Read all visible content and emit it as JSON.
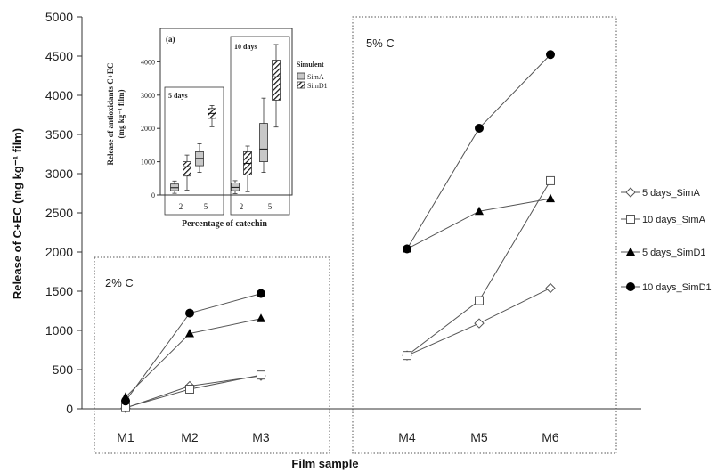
{
  "chart_data": [
    {
      "type": "line",
      "xlabel": "Film sample",
      "ylabel": "Release of C+EC (mg kg⁻¹ film)",
      "ylim": [
        0,
        5000
      ],
      "yticks": [
        0,
        500,
        1000,
        1500,
        2000,
        2500,
        3000,
        3500,
        4000,
        4500,
        5000
      ],
      "ytick_labels": [
        "0",
        "500",
        "1000",
        "1500",
        "2000",
        "2500",
        "3000",
        "3500",
        "4000",
        "4500",
        "5000"
      ],
      "categories": [
        "M1",
        "M2",
        "M3",
        "M4",
        "M5",
        "M6"
      ],
      "groups": [
        {
          "label": "2% C",
          "categories": [
            "M1",
            "M2",
            "M3"
          ]
        },
        {
          "label": "5% C",
          "categories": [
            "M4",
            "M5",
            "M6"
          ]
        }
      ],
      "legend_position": "right",
      "series": [
        {
          "name": "5 days_SimA",
          "marker": "diamond-open",
          "color": "#555555",
          "values": [
            10,
            290,
            420,
            680,
            1090,
            1540
          ]
        },
        {
          "name": "10 days_SimA",
          "marker": "square-open",
          "color": "#555555",
          "values": [
            15,
            250,
            430,
            680,
            1380,
            2910
          ]
        },
        {
          "name": "5 days_SimD1",
          "marker": "triangle-filled",
          "color": "#000000",
          "values": [
            150,
            960,
            1150,
            2040,
            2520,
            2680
          ]
        },
        {
          "name": "10 days_SimD1",
          "marker": "circle-filled",
          "color": "#000000",
          "values": [
            100,
            1220,
            1470,
            2040,
            3580,
            4520
          ]
        }
      ]
    },
    {
      "type": "box",
      "panel_label": "(a)",
      "ylabel_line1": "Release of antioxidants C+EC",
      "ylabel_line2": "(mg kg⁻¹ film)",
      "xlabel": "Percentage of catechin",
      "ylim": [
        0,
        5000
      ],
      "yticks": [
        0,
        1000,
        2000,
        3000,
        4000
      ],
      "ytick_labels": [
        "0",
        "1000",
        "2000",
        "3000",
        "4000"
      ],
      "legend_title": "Simulent",
      "legend": [
        {
          "name": "SimA",
          "fill": "solid-gray"
        },
        {
          "name": "SimD1",
          "fill": "hatched"
        }
      ],
      "panels": [
        {
          "label": "5 days",
          "categories": [
            "2",
            "5"
          ],
          "boxes": [
            {
              "category": "2",
              "simulant": "SimA",
              "min": 50,
              "q1": 130,
              "median": 220,
              "q3": 330,
              "max": 420
            },
            {
              "category": "2",
              "simulant": "SimD1",
              "min": 150,
              "q1": 570,
              "median": 850,
              "q3": 1000,
              "max": 1200
            },
            {
              "category": "5",
              "simulant": "SimA",
              "min": 680,
              "q1": 880,
              "median": 1100,
              "q3": 1300,
              "max": 1540
            },
            {
              "category": "5",
              "simulant": "SimD1",
              "min": 2050,
              "q1": 2300,
              "median": 2450,
              "q3": 2600,
              "max": 2690
            }
          ]
        },
        {
          "label": "10 days",
          "categories": [
            "2",
            "5"
          ],
          "boxes": [
            {
              "category": "2",
              "simulant": "SimA",
              "min": 40,
              "q1": 130,
              "median": 230,
              "q3": 360,
              "max": 430
            },
            {
              "category": "2",
              "simulant": "SimD1",
              "min": 100,
              "q1": 600,
              "median": 950,
              "q3": 1300,
              "max": 1470
            },
            {
              "category": "5",
              "simulant": "SimA",
              "min": 680,
              "q1": 1000,
              "median": 1380,
              "q3": 2150,
              "max": 2910
            },
            {
              "category": "5",
              "simulant": "SimD1",
              "min": 2040,
              "q1": 2850,
              "median": 3550,
              "q3": 4050,
              "max": 4520
            }
          ]
        }
      ]
    }
  ]
}
